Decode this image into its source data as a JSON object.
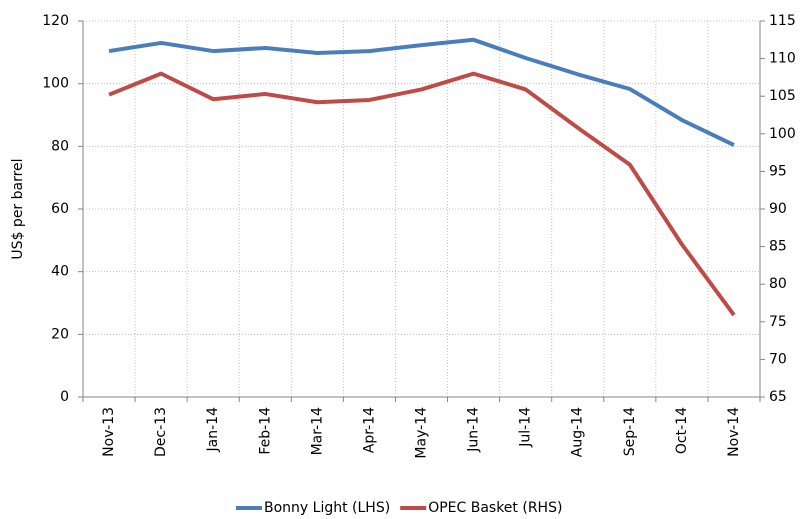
{
  "chart_data": {
    "type": "line",
    "y_label": "US$ per barrel",
    "categories": [
      "Nov-13",
      "Dec-13",
      "Jan-14",
      "Feb-14",
      "Mar-14",
      "Apr-14",
      "May-14",
      "Jun-14",
      "Jul-14",
      "Aug-14",
      "Sep-14",
      "Oct-14",
      "Nov-14"
    ],
    "series": [
      {
        "name": "Bonny Light (LHS)",
        "color": "#4a7ebb",
        "values": [
          110.4,
          113,
          110.4,
          111.4,
          109.8,
          110.4,
          112.3,
          114,
          108.2,
          103,
          98.3,
          88.4,
          80.4
        ]
      },
      {
        "name": "OPEC Basket (RHS)",
        "color": "#be4b48",
        "axis": "y2",
        "values": [
          105.2,
          108,
          104.6,
          105.3,
          104.2,
          104.5,
          105.9,
          108,
          105.9,
          100.8,
          95.9,
          85.3,
          75.9
        ]
      }
    ],
    "ylim": [
      0,
      120
    ],
    "yticks": [
      0,
      20,
      40,
      60,
      80,
      100,
      120
    ],
    "y2lim": [
      65,
      115
    ],
    "y2ticks": [
      65,
      70,
      75,
      80,
      85,
      90,
      95,
      100,
      105,
      110,
      115
    ],
    "grid": true,
    "legend": "bottom"
  }
}
